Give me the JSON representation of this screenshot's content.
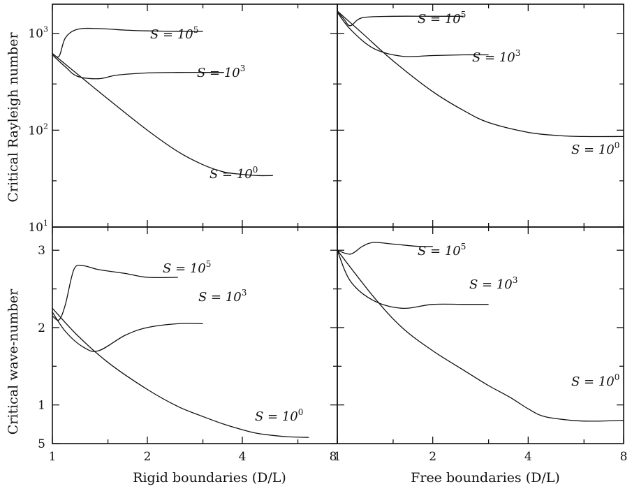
{
  "chart_data": {
    "type": "line",
    "panels": [
      {
        "id": "top-left",
        "ylabel": "Critical Rayleigh number",
        "yscale": "log",
        "ylim": [
          10,
          2000
        ],
        "xscale": "log",
        "xlim": [
          1,
          8
        ],
        "xticks": [
          1,
          2,
          4,
          8
        ],
        "xtick_labels": [
          "1",
          "2",
          "4",
          "8"
        ],
        "yticks": [
          10,
          100,
          1000
        ],
        "ytick_labels": [
          {
            "base": "10",
            "exp": "1"
          },
          {
            "base": "10",
            "exp": "2"
          },
          {
            "base": "10",
            "exp": "3"
          }
        ],
        "series": [
          {
            "name": "S = 10^5",
            "label_base": "S = 10",
            "label_exp": "5",
            "x": [
              1.0,
              1.05,
              1.1,
              1.2,
              1.4,
              1.7,
              2.0,
              2.5,
              3.0
            ],
            "y": [
              620,
              580,
              900,
              1100,
              1120,
              1080,
              1060,
              1050,
              1050
            ]
          },
          {
            "name": "S = 10^3",
            "label_base": "S = 10",
            "label_exp": "3",
            "x": [
              1.0,
              1.1,
              1.2,
              1.4,
              1.6,
              2.0,
              2.5,
              3.0,
              3.5
            ],
            "y": [
              600,
              450,
              360,
              340,
              370,
              390,
              395,
              395,
              395
            ]
          },
          {
            "name": "S = 10^0",
            "label_base": "S = 10",
            "label_exp": "0",
            "x": [
              1.0,
              1.2,
              1.5,
              2.0,
              2.5,
              3.0,
              3.5,
              4.0,
              4.5,
              5.0
            ],
            "y": [
              620,
              380,
              210,
              100,
              60,
              44,
              37,
              35,
              34,
              34
            ]
          }
        ]
      },
      {
        "id": "top-right",
        "yscale": "log",
        "ylim": [
          10,
          2000
        ],
        "xscale": "log",
        "xlim": [
          1,
          8
        ],
        "xticks": [
          1,
          2,
          4,
          8
        ],
        "yticks": [
          10,
          100,
          1000
        ],
        "series": [
          {
            "name": "S = 10^5",
            "label_base": "S = 10",
            "label_exp": "5",
            "x": [
              1.0,
              1.05,
              1.1,
              1.2,
              1.5,
              2.0,
              2.5
            ],
            "y": [
              1700,
              1400,
              1200,
              1450,
              1500,
              1500,
              1500
            ]
          },
          {
            "name": "S = 10^3",
            "label_base": "S = 10",
            "label_exp": "3",
            "x": [
              1.0,
              1.1,
              1.3,
              1.6,
              2.0,
              2.5,
              3.0
            ],
            "y": [
              1650,
              1100,
              700,
              580,
              590,
              600,
              600
            ]
          },
          {
            "name": "S = 10^0",
            "label_base": "S = 10",
            "label_exp": "0",
            "x": [
              1.0,
              1.2,
              1.5,
              2.0,
              2.5,
              3.0,
              4.0,
              5.0,
              6.0,
              8.0
            ],
            "y": [
              1700,
              1000,
              520,
              250,
              160,
              120,
              95,
              88,
              86,
              86
            ]
          }
        ]
      },
      {
        "id": "bottom-left",
        "ylabel": "Critical wave-number",
        "xlabel": "Rigid boundaries (D/L)",
        "yscale": "linear",
        "ylim": [
          0.5,
          3.3
        ],
        "xscale": "log",
        "xlim": [
          1,
          8
        ],
        "xticks": [
          1,
          2,
          4,
          8
        ],
        "xtick_labels": [
          "1",
          "2",
          "4",
          "8"
        ],
        "yticks": [
          1,
          2,
          3
        ],
        "ytick_labels": [
          "5",
          "1",
          "2",
          "3"
        ],
        "yticks_all": [
          0.5,
          1,
          2,
          3
        ],
        "series": [
          {
            "name": "S = 10^5",
            "label_base": "S = 10",
            "label_exp": "5",
            "x": [
              1.0,
              1.05,
              1.1,
              1.17,
              1.25,
              1.4,
              1.7,
              2.0,
              2.5
            ],
            "y": [
              2.15,
              2.1,
              2.3,
              2.75,
              2.8,
              2.75,
              2.7,
              2.65,
              2.65
            ]
          },
          {
            "name": "S = 10^3",
            "label_base": "S = 10",
            "label_exp": "3",
            "x": [
              1.0,
              1.1,
              1.25,
              1.4,
              1.7,
              2.0,
              2.5,
              3.0
            ],
            "y": [
              2.2,
              1.95,
              1.75,
              1.7,
              1.9,
              2.0,
              2.05,
              2.05
            ]
          },
          {
            "name": "S = 10^0",
            "label_base": "S = 10",
            "label_exp": "0",
            "x": [
              1.0,
              1.2,
              1.5,
              2.0,
              2.5,
              3.0,
              3.5,
              4.0,
              4.5,
              5.5,
              6.5
            ],
            "y": [
              2.25,
              1.9,
              1.55,
              1.2,
              0.98,
              0.85,
              0.75,
              0.68,
              0.63,
              0.59,
              0.58
            ]
          }
        ]
      },
      {
        "id": "bottom-right",
        "xlabel": "Free boundaries (D/L)",
        "yscale": "linear",
        "ylim": [
          0.5,
          3.3
        ],
        "xscale": "log",
        "xlim": [
          1,
          8
        ],
        "xticks": [
          1,
          2,
          4,
          8
        ],
        "xtick_labels": [
          "1",
          "2",
          "4",
          "8"
        ],
        "yticks": [
          1,
          2,
          3
        ],
        "series": [
          {
            "name": "S = 10^5",
            "label_base": "S = 10",
            "label_exp": "5",
            "x": [
              1.0,
              1.1,
              1.2,
              1.3,
              1.5,
              1.8,
              2.0
            ],
            "y": [
              3.0,
              2.95,
              3.05,
              3.1,
              3.08,
              3.05,
              3.05
            ]
          },
          {
            "name": "S = 10^3",
            "label_base": "S = 10",
            "label_exp": "3",
            "x": [
              1.0,
              1.1,
              1.3,
              1.6,
              2.0,
              2.5,
              3.0
            ],
            "y": [
              3.0,
              2.6,
              2.35,
              2.25,
              2.3,
              2.3,
              2.3
            ]
          },
          {
            "name": "S = 10^0",
            "label_base": "S = 10",
            "label_exp": "0",
            "x": [
              1.0,
              1.3,
              1.6,
              2.0,
              2.5,
              3.0,
              3.5,
              4.0,
              4.5,
              5.5,
              6.5,
              8.0
            ],
            "y": [
              3.0,
              2.4,
              2.0,
              1.7,
              1.45,
              1.25,
              1.1,
              0.95,
              0.85,
              0.8,
              0.79,
              0.8
            ]
          }
        ]
      }
    ]
  }
}
